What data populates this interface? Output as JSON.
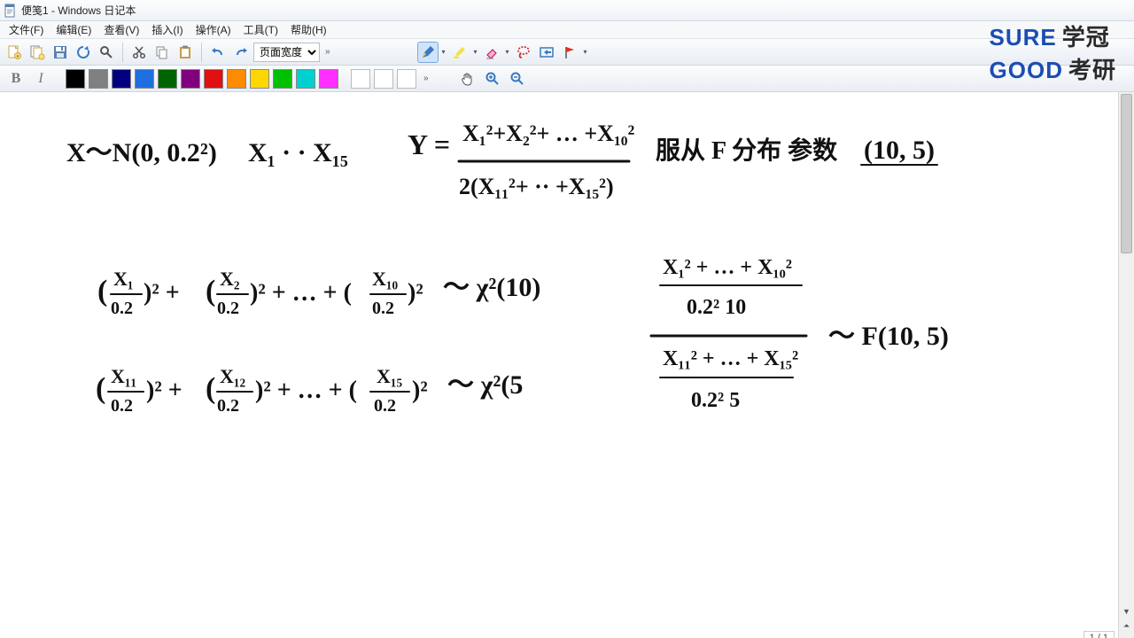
{
  "window": {
    "title": "便笺1 - Windows 日记本"
  },
  "menu": {
    "items": [
      {
        "label": "文件(F)"
      },
      {
        "label": "编辑(E)"
      },
      {
        "label": "查看(V)"
      },
      {
        "label": "插入(I)"
      },
      {
        "label": "操作(A)"
      },
      {
        "label": "工具(T)"
      },
      {
        "label": "帮助(H)"
      }
    ]
  },
  "toolbar": {
    "zoom_label": "页面宽度",
    "icons": {
      "new": "new-note-icon",
      "new2": "new-note2-icon",
      "save": "save-icon",
      "refresh": "refresh-icon",
      "find": "find-icon",
      "cut": "cut-icon",
      "copy": "copy-icon",
      "paste": "paste-icon",
      "undo": "undo-icon",
      "redo": "redo-icon",
      "pen": "pen-icon",
      "highlighter": "highlighter-icon",
      "eraser": "eraser-icon",
      "lasso": "lasso-icon",
      "insert": "insert-space-icon",
      "flag": "flag-icon",
      "hand": "pan-hand-icon",
      "zoomin": "zoom-in-icon",
      "zoomout": "zoom-out-icon"
    }
  },
  "format": {
    "bold": "B",
    "italic": "I"
  },
  "palette": {
    "colors": [
      "#000000",
      "#808080",
      "#000080",
      "#1f6fe0",
      "#006400",
      "#800080",
      "#e01010",
      "#ff8c00",
      "#ffd700",
      "#00c000",
      "#00d0d0",
      "#ff30ff"
    ]
  },
  "logo": {
    "line1a": "SURE",
    "line1b": "学冠",
    "line2a": "GOOD",
    "line2b": "考研",
    "colors": {
      "brand": "#1b4db3",
      "cn": "#2a2a2a"
    }
  },
  "page": {
    "indicator": "1 / 1"
  },
  "handwriting": {
    "stroke": "#111111",
    "stroke_width": 3,
    "lines": [
      "X ~ N(0, 0.2²)    X₁ · · X₁₅",
      "Y = (X₁²+X₂²+…+X₁₀²) / 2(X₁₁²+…+X₁₅²)   服从 F 分布 参数 (10, 5)",
      "(X₁/0.2)² + (X₂/0.2)² + … + (X₁₀/0.2)²  ~  χ²(10)",
      "(X₁₁/0.2)² + (X₁₂/0.2)² + … + (X₁₅/0.2)²  ~  χ²(5",
      "[(X₁²+…+X₁₀²)/(0.2²·10)] / [(X₁₁²+…+X₁₅²)/(0.2²·5)]  ~  F(10, 5)"
    ]
  }
}
